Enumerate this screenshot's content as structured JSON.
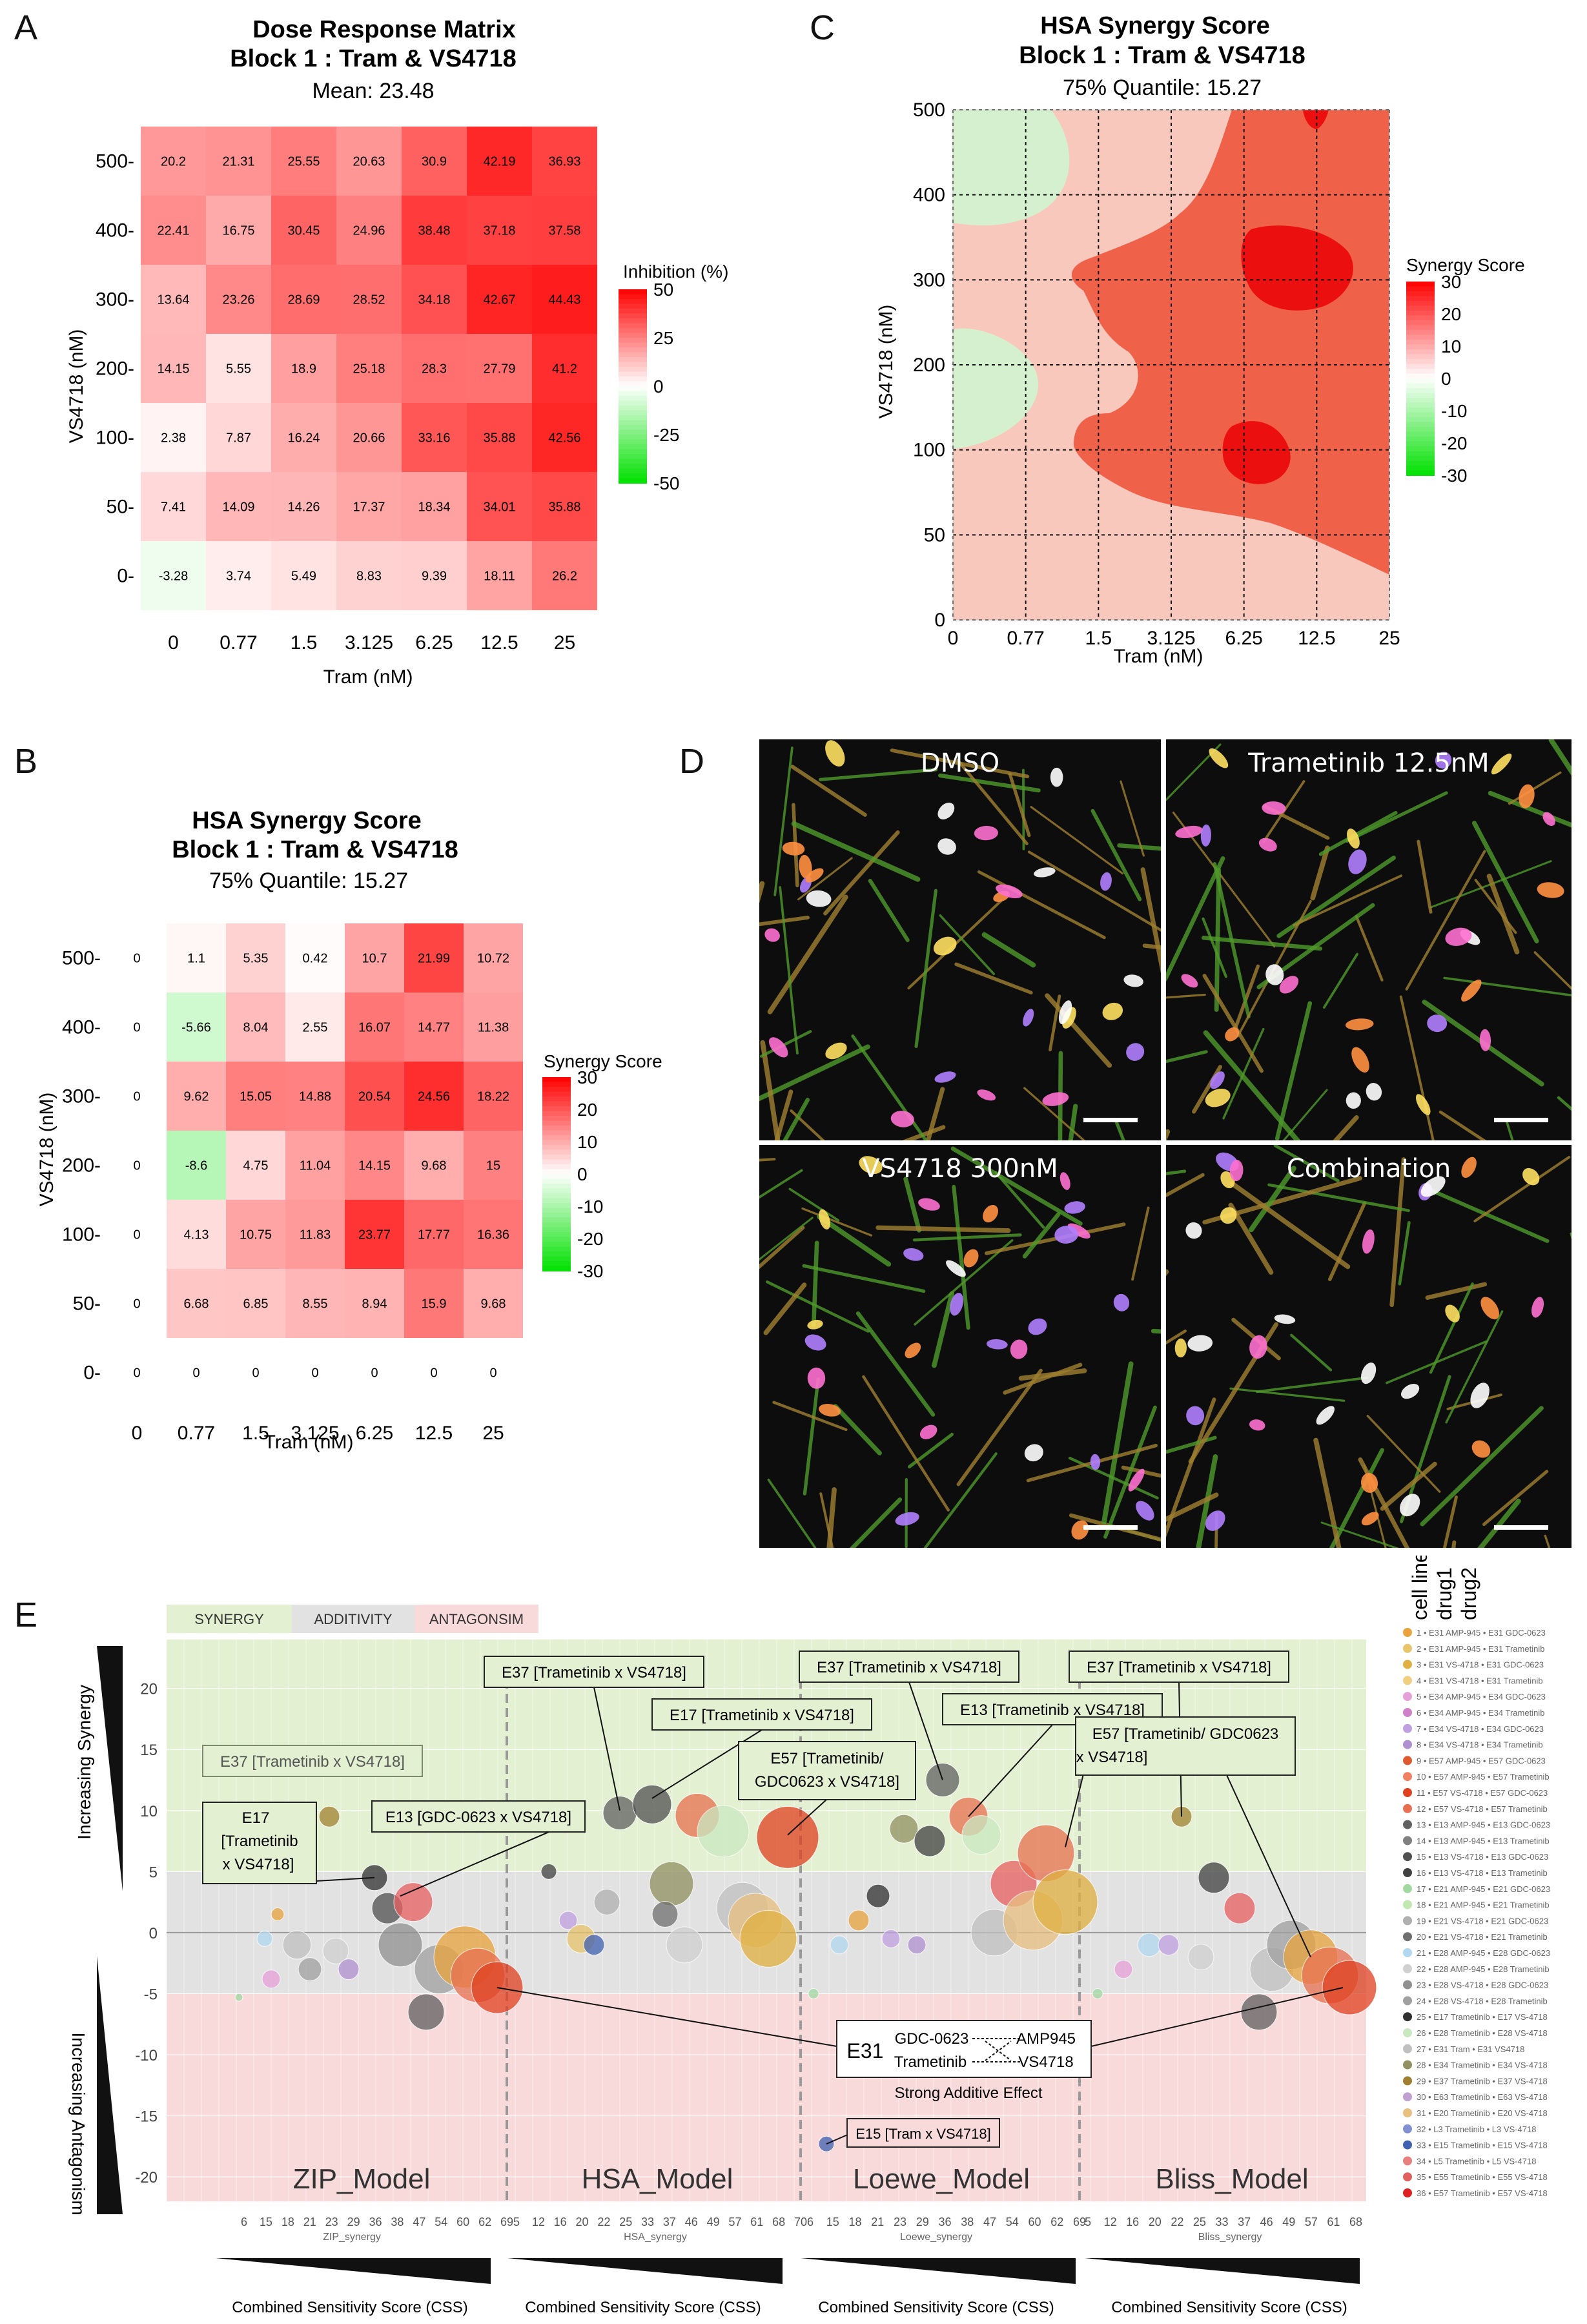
{
  "panel_letters": {
    "a": "A",
    "b": "B",
    "c": "C",
    "d": "D",
    "e": "E"
  },
  "colors": {
    "red": "#ff0000",
    "white": "#ffffff",
    "green": "#00e000",
    "synergy_band": "#e4f0d2",
    "additivity_band": "#e2e2e2",
    "antagonism_band": "#f9dadb"
  },
  "chart_data": [
    {
      "type": "heatmap",
      "panel": "A",
      "title": "Dose Response Matrix",
      "subtitle": "Block 1 : Tram & VS4718",
      "summary": "Mean: 23.48",
      "xlabel": "Tram (nM)",
      "ylabel": "VS4718 (nM)",
      "x_categories": [
        "0",
        "0.77",
        "1.5",
        "3.125",
        "6.25",
        "12.5",
        "25"
      ],
      "y_categories": [
        "500",
        "400",
        "300",
        "200",
        "100",
        "50",
        "0"
      ],
      "values": [
        [
          "20.2",
          "21.31",
          "25.55",
          "20.63",
          "30.9",
          "42.19",
          "36.93"
        ],
        [
          "22.41",
          "16.75",
          "30.45",
          "24.96",
          "38.48",
          "37.18",
          "37.58"
        ],
        [
          "13.64",
          "23.26",
          "28.69",
          "28.52",
          "34.18",
          "42.67",
          "44.43"
        ],
        [
          "14.15",
          "5.55",
          "18.9",
          "25.18",
          "28.3",
          "27.79",
          "41.2"
        ],
        [
          "2.38",
          "7.87",
          "16.24",
          "20.66",
          "33.16",
          "35.88",
          "42.56"
        ],
        [
          "7.41",
          "14.09",
          "14.26",
          "17.37",
          "18.34",
          "34.01",
          "35.88"
        ],
        [
          "-3.28",
          "3.74",
          "5.49",
          "8.83",
          "9.39",
          "18.11",
          "26.2"
        ]
      ],
      "legend_title": "Inhibition (%)",
      "legend_ticks": [
        "50",
        "25",
        "0",
        "-25",
        "-50"
      ],
      "legend_range": [
        -50,
        50
      ]
    },
    {
      "type": "heatmap",
      "panel": "B",
      "title": "HSA Synergy Score",
      "subtitle": "Block 1 : Tram & VS4718",
      "summary": "75% Quantile: 15.27",
      "xlabel": "Tram (nM)",
      "ylabel": "VS4718 (nM)",
      "x_categories": [
        "0",
        "0.77",
        "1.5",
        "3.125",
        "6.25",
        "12.5",
        "25"
      ],
      "y_categories": [
        "500",
        "400",
        "300",
        "200",
        "100",
        "50",
        "0"
      ],
      "values": [
        [
          "0",
          "1.1",
          "5.35",
          "0.42",
          "10.7",
          "21.99",
          "10.72"
        ],
        [
          "0",
          "-5.66",
          "8.04",
          "2.55",
          "16.07",
          "14.77",
          "11.38"
        ],
        [
          "0",
          "9.62",
          "15.05",
          "14.88",
          "20.54",
          "24.56",
          "18.22"
        ],
        [
          "0",
          "-8.6",
          "4.75",
          "11.04",
          "14.15",
          "9.68",
          "15"
        ],
        [
          "0",
          "4.13",
          "10.75",
          "11.83",
          "23.77",
          "17.77",
          "16.36"
        ],
        [
          "0",
          "6.68",
          "6.85",
          "8.55",
          "8.94",
          "15.9",
          "9.68"
        ],
        [
          "0",
          "0",
          "0",
          "0",
          "0",
          "0",
          "0"
        ]
      ],
      "legend_title": "Synergy Score",
      "legend_ticks": [
        "30",
        "20",
        "10",
        "0",
        "-10",
        "-20",
        "-30"
      ],
      "legend_range": [
        -30,
        30
      ]
    },
    {
      "type": "contour",
      "panel": "C",
      "title": "HSA Synergy Score",
      "subtitle": "Block 1 : Tram & VS4718",
      "summary": "75% Quantile: 15.27",
      "xlabel": "Tram (nM)",
      "ylabel": "VS4718 (nM)",
      "x_categories": [
        "0",
        "0.77",
        "1.5",
        "3.125",
        "6.25",
        "12.5",
        "25"
      ],
      "y_categories": [
        "0",
        "50",
        "100",
        "200",
        "300",
        "400",
        "500"
      ],
      "legend_title": "Synergy Score",
      "legend_ticks": [
        "30",
        "20",
        "10",
        "0",
        "-10",
        "-20",
        "-30"
      ],
      "legend_range": [
        -30,
        30
      ]
    },
    {
      "type": "scatter",
      "panel": "E",
      "bands": {
        "synergy": "SYNERGY",
        "additivity": "ADDITIVITY",
        "antagonism": "ANTAGONSIM"
      },
      "ylim": [
        -22,
        24
      ],
      "y_ticks": [
        "20",
        "15",
        "10",
        "5",
        "0",
        "-5",
        "-10",
        "-15",
        "-20"
      ],
      "y_tick_values": [
        20,
        15,
        10,
        5,
        0,
        -5,
        -10,
        -15,
        -20
      ],
      "y_label_top": "Increasing Synergy",
      "y_label_bottom": "Increasing Antagonism",
      "models": [
        {
          "name": "ZIP_Model",
          "axis": "ZIP_synergy",
          "ticks": [
            "6",
            "15",
            "18",
            "21",
            "23",
            "29",
            "36",
            "38",
            "47",
            "54",
            "60",
            "62",
            "69"
          ]
        },
        {
          "name": "HSA_Model",
          "axis": "HSA_synergy",
          "ticks": [
            "5",
            "12",
            "16",
            "20",
            "22",
            "25",
            "33",
            "37",
            "46",
            "49",
            "57",
            "61",
            "68",
            "70"
          ]
        },
        {
          "name": "Loewe_Model",
          "axis": "Loewe_synergy",
          "ticks": [
            "6",
            "15",
            "18",
            "21",
            "23",
            "29",
            "36",
            "38",
            "47",
            "54",
            "60",
            "62",
            "69"
          ]
        },
        {
          "name": "Bliss_Model",
          "axis": "Bliss_synergy",
          "ticks": [
            "5",
            "12",
            "16",
            "20",
            "22",
            "25",
            "33",
            "37",
            "46",
            "49",
            "57",
            "61",
            "68"
          ]
        }
      ],
      "xlabel": "Combined Sensitivity Score (CSS)",
      "legend_header": [
        "cell line",
        "drug1",
        "drug2"
      ],
      "legend_items": [
        "1 • E31 AMP-945 • E31 GDC-0623",
        "2 • E31 AMP-945 • E31 Trametinib",
        "3 • E31 VS-4718 • E31 GDC-0623",
        "4 • E31 VS-4718 • E31 Trametinib",
        "5 • E34 AMP-945 • E34 GDC-0623",
        "6 • E34 AMP-945 • E34 Trametinib",
        "7 • E34 VS-4718 • E34 GDC-0623",
        "8 • E34 VS-4718 • E34 Trametinib",
        "9 • E57 AMP-945 • E57 GDC-0623",
        "10 • E57 AMP-945 • E57 Trametinib",
        "11 • E57 VS-4718 • E57 GDC-0623",
        "12 • E57 VS-4718 • E57 Trametinib",
        "13 • E13 AMP-945 • E13 GDC-0623",
        "14 • E13 AMP-945 • E13 Trametinib",
        "15 • E13 VS-4718 • E13 GDC-0623",
        "16 • E13 VS-4718 • E13 Trametinib",
        "17 • E21 AMP-945 • E21 GDC-0623",
        "18 • E21 AMP-945 • E21 Trametinib",
        "19 • E21 VS-4718 • E21 GDC-0623",
        "20 • E21 VS-4718 • E21 Trametinib",
        "21 • E28 AMP-945 • E28 GDC-0623",
        "22 • E28 AMP-945 • E28 Trametinib",
        "23 • E28 VS-4718 • E28 GDC-0623",
        "24 • E28 VS-4718 • E28 Trametinib",
        "25 • E17 Trametinib • E17 VS-4718",
        "26 • E28 Trametinib • E28 VS-4718",
        "27 • E31 Tram • E31 VS4718",
        "28 • E34 Trametinib • E34 VS-4718",
        "29 • E37 Trametinib • E37 VS-4718",
        "30 • E63 Trametinib • E63 VS-4718",
        "31 • E20 Trametinib • E20 VS-4718",
        "32 • L3 Trametinib • L3 VS-4718",
        "33 • E15 Trametinib • E15 VS-4718",
        "34 • L5 Trametinib • L5 VS-4718",
        "35 • E55 Trametinib • E55 VS-4718",
        "36 • E57 Trametinib • E57 VS-4718"
      ],
      "legend_colors": [
        "#e8a33d",
        "#e8c46a",
        "#e0b040",
        "#f0d080",
        "#e6a0d8",
        "#d080c8",
        "#c0a0e0",
        "#b090d0",
        "#e05a30",
        "#f08060",
        "#e04020",
        "#e87050",
        "#606060",
        "#808080",
        "#505050",
        "#404040",
        "#a0d8a0",
        "#c0e8b0",
        "#b0b0b0",
        "#707070",
        "#b0d8f0",
        "#d0d0d0",
        "#909090",
        "#a0a0a0",
        "#303030",
        "#c8e8c0",
        "#c0c0c0",
        "#909060",
        "#a08030",
        "#c0a0d0",
        "#e8c080",
        "#8090d0",
        "#4060b0",
        "#e88080",
        "#e06060",
        "#e02020"
      ],
      "annotations": {
        "zip_e37": "E37 [Trametinib x VS4718]",
        "zip_e17_l1": "E17",
        "zip_e17_l2": "[Trametinib",
        "zip_e17_l3": "x VS4718]",
        "zip_e13": "E13 [GDC-0623 x VS4718]",
        "hsa_e37": "E37 [Trametinib x VS4718]",
        "hsa_e17": "E17 [Trametinib x VS4718]",
        "hsa_e57_l1": "E57 [Trametinib/",
        "hsa_e57_l2": "GDC0623 x VS4718]",
        "loewe_e37": "E37 [Trametinib x VS4718]",
        "loewe_e13": "E13 [Trametinib x VS4718]",
        "bliss_e37": "E37 [Trametinib x VS4718]",
        "bliss_e57_l1": "E57 [Trametinib/ GDC0623",
        "bliss_e57_l2": "x VS4718]",
        "e31_cell": "E31",
        "e31_gdc": "GDC-0623",
        "e31_tram": "Trametinib",
        "e31_amp": "AMP945",
        "e31_vs": "VS4718",
        "e31_caption": "Strong Additive Effect",
        "e15": "E15 [Tram x VS4718]"
      }
    }
  ],
  "micrographs": {
    "d1": "DMSO",
    "d2": "Trametinib 12.5nM",
    "d3": "VS4718 300nM",
    "d4": "Combination"
  }
}
